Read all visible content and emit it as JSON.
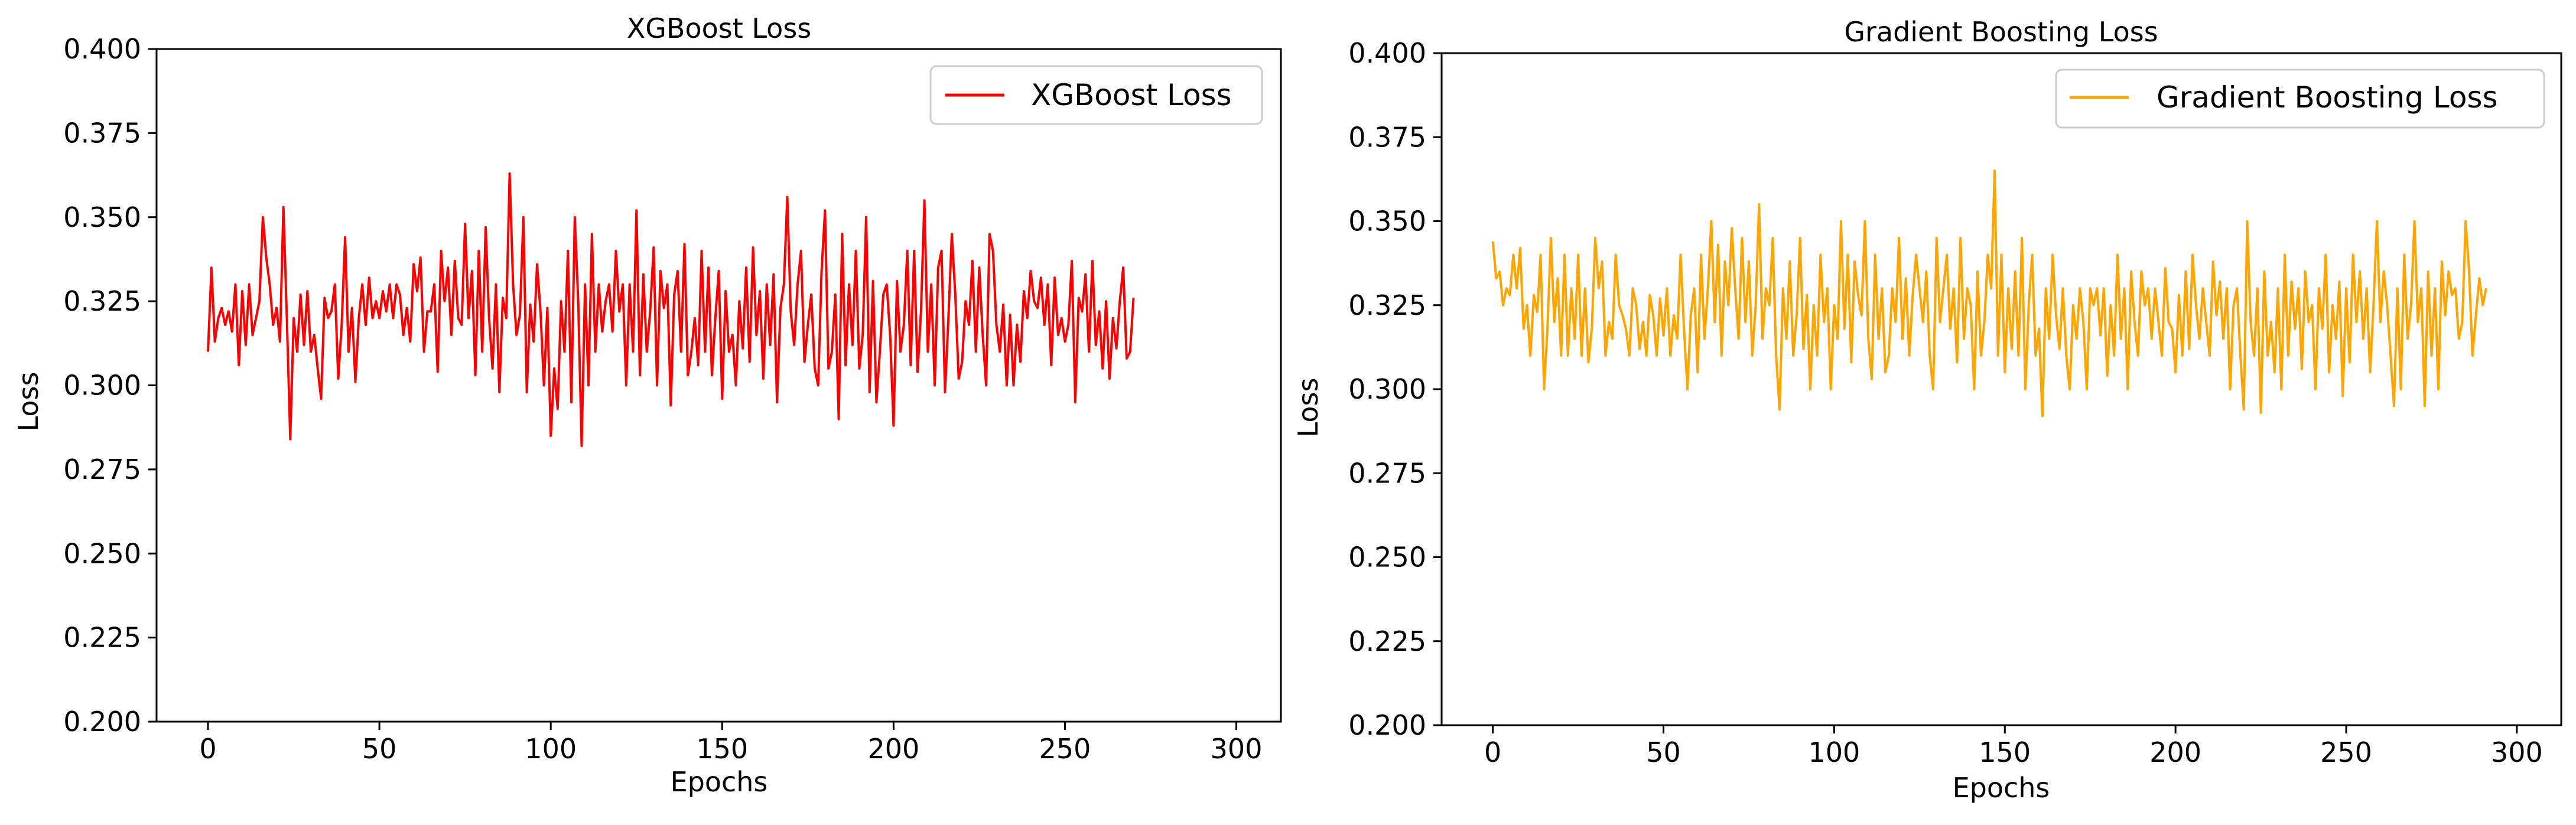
{
  "chart_data": [
    {
      "type": "line",
      "title": "XGBoost Loss",
      "xlabel": "Epochs",
      "ylabel": "Loss",
      "xlim": [
        -15,
        313
      ],
      "ylim": [
        0.2,
        0.4
      ],
      "xticks": [
        0,
        50,
        100,
        150,
        200,
        250,
        300
      ],
      "yticks": [
        0.2,
        0.225,
        0.25,
        0.275,
        0.3,
        0.325,
        0.35,
        0.375,
        0.4
      ],
      "xtick_labels": [
        "0",
        "50",
        "100",
        "150",
        "200",
        "250",
        "300"
      ],
      "ytick_labels": [
        "0.200",
        "0.225",
        "0.250",
        "0.275",
        "0.300",
        "0.325",
        "0.350",
        "0.375",
        "0.400"
      ],
      "grid": false,
      "legend": "top-right",
      "series": [
        {
          "name": "XGBoost Loss",
          "color": "#ff0000",
          "x_start": 0,
          "x_step": 1,
          "values": [
            0.31,
            0.335,
            0.313,
            0.32,
            0.323,
            0.318,
            0.322,
            0.316,
            0.33,
            0.306,
            0.328,
            0.312,
            0.33,
            0.315,
            0.32,
            0.325,
            0.35,
            0.338,
            0.33,
            0.318,
            0.323,
            0.313,
            0.353,
            0.32,
            0.284,
            0.32,
            0.31,
            0.327,
            0.312,
            0.328,
            0.31,
            0.315,
            0.305,
            0.296,
            0.326,
            0.32,
            0.322,
            0.33,
            0.302,
            0.318,
            0.344,
            0.31,
            0.323,
            0.301,
            0.32,
            0.33,
            0.318,
            0.332,
            0.32,
            0.325,
            0.32,
            0.328,
            0.322,
            0.33,
            0.32,
            0.33,
            0.327,
            0.315,
            0.323,
            0.313,
            0.336,
            0.328,
            0.338,
            0.31,
            0.322,
            0.322,
            0.33,
            0.304,
            0.34,
            0.325,
            0.335,
            0.315,
            0.337,
            0.32,
            0.318,
            0.348,
            0.32,
            0.334,
            0.303,
            0.34,
            0.31,
            0.347,
            0.32,
            0.305,
            0.33,
            0.298,
            0.326,
            0.32,
            0.363,
            0.33,
            0.315,
            0.321,
            0.35,
            0.298,
            0.324,
            0.313,
            0.336,
            0.322,
            0.3,
            0.323,
            0.285,
            0.305,
            0.293,
            0.325,
            0.31,
            0.34,
            0.295,
            0.35,
            0.325,
            0.282,
            0.33,
            0.3,
            0.345,
            0.31,
            0.33,
            0.316,
            0.325,
            0.33,
            0.316,
            0.34,
            0.322,
            0.33,
            0.3,
            0.33,
            0.31,
            0.352,
            0.303,
            0.333,
            0.31,
            0.322,
            0.341,
            0.3,
            0.334,
            0.323,
            0.33,
            0.294,
            0.327,
            0.334,
            0.31,
            0.342,
            0.303,
            0.31,
            0.32,
            0.306,
            0.34,
            0.31,
            0.335,
            0.303,
            0.32,
            0.334,
            0.296,
            0.328,
            0.31,
            0.315,
            0.3,
            0.325,
            0.311,
            0.335,
            0.307,
            0.341,
            0.315,
            0.328,
            0.302,
            0.33,
            0.312,
            0.333,
            0.295,
            0.323,
            0.33,
            0.356,
            0.322,
            0.312,
            0.33,
            0.34,
            0.307,
            0.318,
            0.327,
            0.305,
            0.3,
            0.334,
            0.352,
            0.305,
            0.31,
            0.327,
            0.29,
            0.345,
            0.306,
            0.33,
            0.312,
            0.34,
            0.305,
            0.315,
            0.35,
            0.298,
            0.331,
            0.295,
            0.31,
            0.327,
            0.33,
            0.315,
            0.288,
            0.331,
            0.31,
            0.318,
            0.34,
            0.306,
            0.34,
            0.304,
            0.322,
            0.355,
            0.31,
            0.33,
            0.3,
            0.335,
            0.34,
            0.298,
            0.32,
            0.345,
            0.327,
            0.302,
            0.307,
            0.325,
            0.318,
            0.337,
            0.31,
            0.335,
            0.315,
            0.3,
            0.345,
            0.34,
            0.318,
            0.31,
            0.324,
            0.3,
            0.321,
            0.3,
            0.318,
            0.307,
            0.328,
            0.32,
            0.334,
            0.325,
            0.323,
            0.332,
            0.318,
            0.33,
            0.306,
            0.332,
            0.315,
            0.32,
            0.313,
            0.318,
            0.337,
            0.295,
            0.326,
            0.322,
            0.333,
            0.31,
            0.337,
            0.312,
            0.322,
            0.305,
            0.325,
            0.302,
            0.32,
            0.311,
            0.325,
            0.335,
            0.308,
            0.31,
            0.326
          ]
        }
      ]
    },
    {
      "type": "line",
      "title": "Gradient Boosting Loss",
      "xlabel": "Epochs",
      "ylabel": "Loss",
      "xlim": [
        -15,
        313
      ],
      "ylim": [
        0.2,
        0.4
      ],
      "xticks": [
        0,
        50,
        100,
        150,
        200,
        250,
        300
      ],
      "yticks": [
        0.2,
        0.225,
        0.25,
        0.275,
        0.3,
        0.325,
        0.35,
        0.375,
        0.4
      ],
      "xtick_labels": [
        "0",
        "50",
        "100",
        "150",
        "200",
        "250",
        "300"
      ],
      "ytick_labels": [
        "0.200",
        "0.225",
        "0.250",
        "0.275",
        "0.300",
        "0.325",
        "0.350",
        "0.375",
        "0.400"
      ],
      "grid": false,
      "legend": "top-right",
      "series": [
        {
          "name": "Gradient Boosting Loss",
          "color": "#ffa500",
          "x_start": 0,
          "x_step": 1,
          "values": [
            0.344,
            0.333,
            0.335,
            0.325,
            0.33,
            0.328,
            0.34,
            0.33,
            0.342,
            0.318,
            0.325,
            0.31,
            0.328,
            0.323,
            0.34,
            0.3,
            0.318,
            0.345,
            0.32,
            0.333,
            0.31,
            0.34,
            0.31,
            0.33,
            0.315,
            0.34,
            0.31,
            0.33,
            0.308,
            0.318,
            0.345,
            0.33,
            0.338,
            0.31,
            0.32,
            0.315,
            0.34,
            0.325,
            0.322,
            0.318,
            0.31,
            0.33,
            0.325,
            0.312,
            0.32,
            0.31,
            0.328,
            0.322,
            0.31,
            0.327,
            0.316,
            0.33,
            0.31,
            0.322,
            0.315,
            0.34,
            0.318,
            0.3,
            0.322,
            0.33,
            0.305,
            0.34,
            0.315,
            0.33,
            0.35,
            0.32,
            0.343,
            0.31,
            0.338,
            0.325,
            0.348,
            0.33,
            0.315,
            0.345,
            0.32,
            0.338,
            0.31,
            0.325,
            0.355,
            0.315,
            0.33,
            0.325,
            0.345,
            0.31,
            0.294,
            0.33,
            0.315,
            0.338,
            0.31,
            0.322,
            0.345,
            0.312,
            0.328,
            0.3,
            0.325,
            0.31,
            0.34,
            0.32,
            0.33,
            0.3,
            0.325,
            0.315,
            0.35,
            0.318,
            0.34,
            0.308,
            0.338,
            0.328,
            0.322,
            0.35,
            0.315,
            0.303,
            0.34,
            0.315,
            0.33,
            0.305,
            0.31,
            0.33,
            0.32,
            0.345,
            0.315,
            0.333,
            0.31,
            0.328,
            0.34,
            0.33,
            0.32,
            0.335,
            0.31,
            0.3,
            0.345,
            0.32,
            0.33,
            0.34,
            0.318,
            0.33,
            0.308,
            0.345,
            0.315,
            0.33,
            0.325,
            0.3,
            0.335,
            0.31,
            0.32,
            0.34,
            0.33,
            0.365,
            0.31,
            0.34,
            0.305,
            0.33,
            0.312,
            0.335,
            0.31,
            0.345,
            0.3,
            0.325,
            0.34,
            0.31,
            0.318,
            0.292,
            0.33,
            0.315,
            0.34,
            0.322,
            0.312,
            0.33,
            0.31,
            0.3,
            0.325,
            0.315,
            0.33,
            0.32,
            0.3,
            0.33,
            0.325,
            0.33,
            0.316,
            0.33,
            0.304,
            0.325,
            0.31,
            0.34,
            0.315,
            0.33,
            0.3,
            0.335,
            0.32,
            0.31,
            0.335,
            0.325,
            0.33,
            0.315,
            0.33,
            0.32,
            0.31,
            0.336,
            0.32,
            0.318,
            0.305,
            0.328,
            0.31,
            0.335,
            0.312,
            0.34,
            0.325,
            0.315,
            0.33,
            0.32,
            0.31,
            0.338,
            0.322,
            0.332,
            0.315,
            0.33,
            0.3,
            0.325,
            0.33,
            0.31,
            0.294,
            0.35,
            0.32,
            0.31,
            0.33,
            0.293,
            0.335,
            0.31,
            0.32,
            0.305,
            0.33,
            0.3,
            0.34,
            0.31,
            0.332,
            0.318,
            0.33,
            0.306,
            0.335,
            0.32,
            0.325,
            0.3,
            0.33,
            0.318,
            0.34,
            0.305,
            0.325,
            0.315,
            0.332,
            0.298,
            0.33,
            0.308,
            0.34,
            0.32,
            0.335,
            0.315,
            0.33,
            0.305,
            0.325,
            0.35,
            0.32,
            0.335,
            0.325,
            0.31,
            0.295,
            0.33,
            0.3,
            0.34,
            0.315,
            0.325,
            0.35,
            0.32,
            0.33,
            0.295,
            0.335,
            0.31,
            0.33,
            0.3,
            0.338,
            0.322,
            0.335,
            0.328,
            0.33,
            0.315,
            0.32,
            0.35,
            0.335,
            0.31,
            0.322,
            0.333,
            0.325,
            0.33
          ]
        }
      ]
    }
  ]
}
